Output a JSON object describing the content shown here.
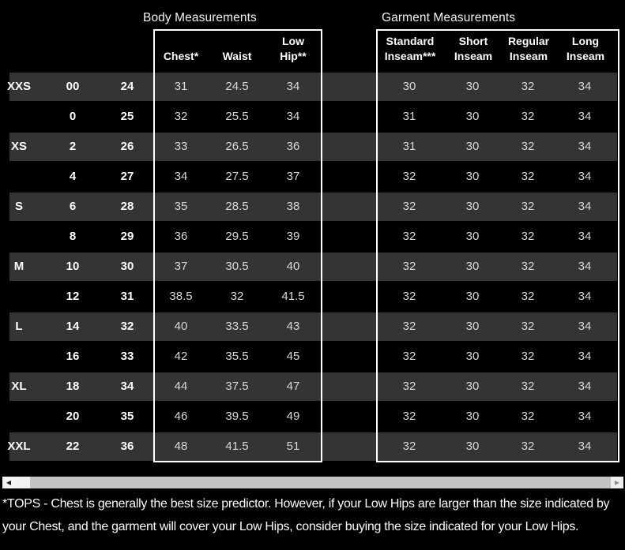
{
  "table": {
    "group_titles": {
      "body": "Body Measurements",
      "garment": "Garment Measurements"
    },
    "body_columns": [
      "Chest*",
      "Waist",
      "Low\nHip**"
    ],
    "garment_columns": [
      "Standard\nInseam***",
      "Short\nInseam",
      "Regular\nInseam",
      "Long\nInseam"
    ],
    "rows": [
      {
        "size": "XXS",
        "size_num": "00",
        "size_alt": "24",
        "body": [
          "31",
          "24.5",
          "34"
        ],
        "garment": [
          "30",
          "30",
          "32",
          "34"
        ]
      },
      {
        "size": "",
        "size_num": "0",
        "size_alt": "25",
        "body": [
          "32",
          "25.5",
          "34"
        ],
        "garment": [
          "31",
          "30",
          "32",
          "34"
        ]
      },
      {
        "size": "XS",
        "size_num": "2",
        "size_alt": "26",
        "body": [
          "33",
          "26.5",
          "36"
        ],
        "garment": [
          "31",
          "30",
          "32",
          "34"
        ]
      },
      {
        "size": "",
        "size_num": "4",
        "size_alt": "27",
        "body": [
          "34",
          "27.5",
          "37"
        ],
        "garment": [
          "32",
          "30",
          "32",
          "34"
        ]
      },
      {
        "size": "S",
        "size_num": "6",
        "size_alt": "28",
        "body": [
          "35",
          "28.5",
          "38"
        ],
        "garment": [
          "32",
          "30",
          "32",
          "34"
        ]
      },
      {
        "size": "",
        "size_num": "8",
        "size_alt": "29",
        "body": [
          "36",
          "29.5",
          "39"
        ],
        "garment": [
          "32",
          "30",
          "32",
          "34"
        ]
      },
      {
        "size": "M",
        "size_num": "10",
        "size_alt": "30",
        "body": [
          "37",
          "30.5",
          "40"
        ],
        "garment": [
          "32",
          "30",
          "32",
          "34"
        ]
      },
      {
        "size": "",
        "size_num": "12",
        "size_alt": "31",
        "body": [
          "38.5",
          "32",
          "41.5"
        ],
        "garment": [
          "32",
          "30",
          "32",
          "34"
        ]
      },
      {
        "size": "L",
        "size_num": "14",
        "size_alt": "32",
        "body": [
          "40",
          "33.5",
          "43"
        ],
        "garment": [
          "32",
          "30",
          "32",
          "34"
        ]
      },
      {
        "size": "",
        "size_num": "16",
        "size_alt": "33",
        "body": [
          "42",
          "35.5",
          "45"
        ],
        "garment": [
          "32",
          "30",
          "32",
          "34"
        ]
      },
      {
        "size": "XL",
        "size_num": "18",
        "size_alt": "34",
        "body": [
          "44",
          "37.5",
          "47"
        ],
        "garment": [
          "32",
          "30",
          "32",
          "34"
        ]
      },
      {
        "size": "",
        "size_num": "20",
        "size_alt": "35",
        "body": [
          "46",
          "39.5",
          "49"
        ],
        "garment": [
          "32",
          "30",
          "32",
          "34"
        ]
      },
      {
        "size": "XXL",
        "size_num": "22",
        "size_alt": "36",
        "body": [
          "48",
          "41.5",
          "51"
        ],
        "garment": [
          "32",
          "30",
          "32",
          "34"
        ]
      }
    ]
  },
  "icons": {
    "scroll_left": "◀",
    "scroll_right": "▶"
  },
  "footnote": "*TOPS - Chest is generally the best size predictor. However, if your Low Hips are larger than the size indicated by your Chest, and the garment will cover your Low Hips, consider buying the size indicated for your Low Hips.",
  "colors": {
    "background": "#000000",
    "row_shaded": "#343434",
    "box_border": "#ffffff",
    "heading_text": "#ffffff",
    "cell_text": "#d9d9d9",
    "scrollbar_track": "#f1f1f1",
    "scrollbar_thumb": "#c3c3c3"
  }
}
